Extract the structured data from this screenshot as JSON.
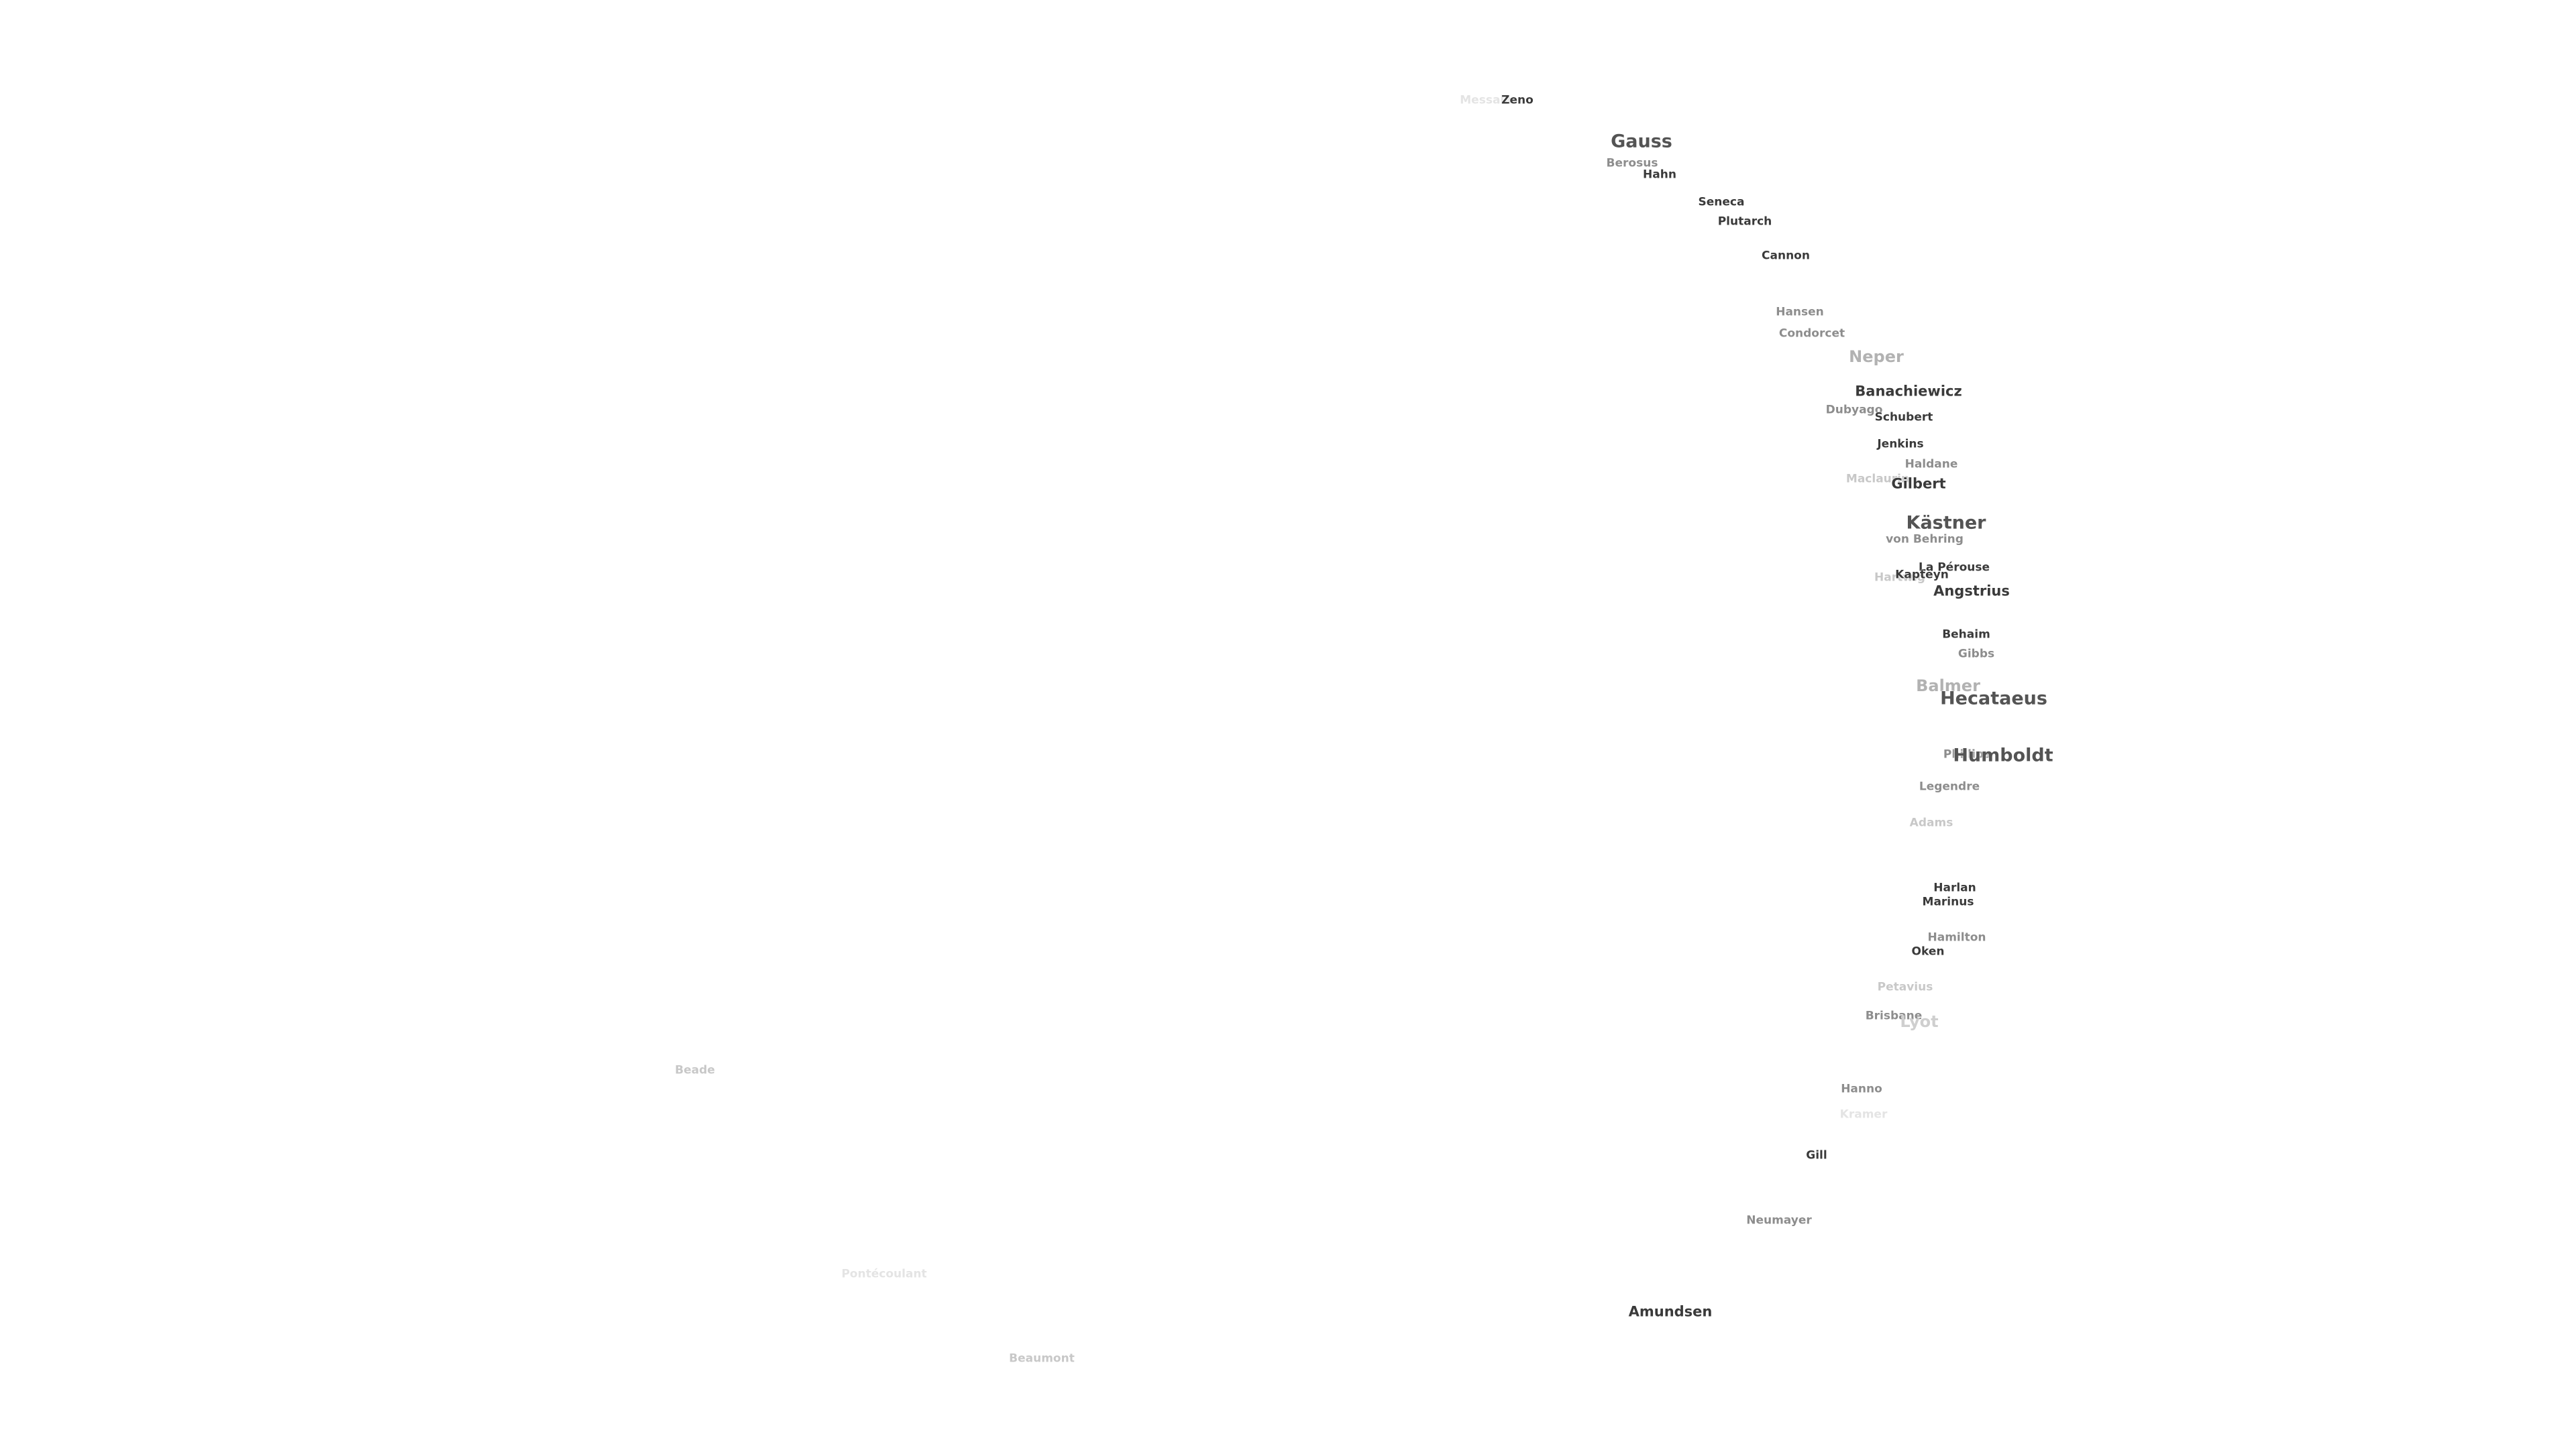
{
  "map": {
    "crater_labels": [
      {
        "name": "Gauss",
        "tone": "dark",
        "size": "large"
      },
      {
        "name": "Humboldt",
        "tone": "dark",
        "size": "large"
      },
      {
        "name": "Hecataeus",
        "tone": "dark",
        "size": "large"
      },
      {
        "name": "Kästner",
        "tone": "dark",
        "size": "large"
      },
      {
        "name": "Angstrius",
        "tone": "dark",
        "size": "medium"
      },
      {
        "name": "Neper",
        "tone": "faint",
        "size": "large"
      },
      {
        "name": "Balmer",
        "tone": "faint",
        "size": "large"
      },
      {
        "name": "Lyot",
        "tone": "faint",
        "size": "large"
      },
      {
        "name": "Amundsen",
        "tone": "dark",
        "size": "medium"
      },
      {
        "name": "Banachiewicz",
        "tone": "dark",
        "size": "medium"
      },
      {
        "name": "Gilbert",
        "tone": "dark",
        "size": "medium"
      },
      {
        "name": "Zeno",
        "tone": "dark",
        "size": "small"
      },
      {
        "name": "Hahn",
        "tone": "dark",
        "size": "small"
      },
      {
        "name": "Seneca",
        "tone": "dark",
        "size": "small"
      },
      {
        "name": "Plutarch",
        "tone": "dark",
        "size": "small"
      },
      {
        "name": "Cannon",
        "tone": "dark",
        "size": "small"
      },
      {
        "name": "Schubert",
        "tone": "dark",
        "size": "small"
      },
      {
        "name": "Jenkins",
        "tone": "dark",
        "size": "small"
      },
      {
        "name": "Behaim",
        "tone": "dark",
        "size": "small"
      },
      {
        "name": "Harlan",
        "tone": "dark",
        "size": "small"
      },
      {
        "name": "Marinus",
        "tone": "dark",
        "size": "small"
      },
      {
        "name": "Oken",
        "tone": "dark",
        "size": "small"
      },
      {
        "name": "Gill",
        "tone": "dark",
        "size": "small"
      },
      {
        "name": "La Pérouse",
        "tone": "dark",
        "size": "small"
      },
      {
        "name": "Kapteyn",
        "tone": "dark",
        "size": "small"
      },
      {
        "name": "von Behring",
        "tone": "grey",
        "size": "small"
      },
      {
        "name": "Berosus",
        "tone": "grey",
        "size": "small"
      },
      {
        "name": "Hansen",
        "tone": "grey",
        "size": "small"
      },
      {
        "name": "Condorcet",
        "tone": "grey",
        "size": "small"
      },
      {
        "name": "Dubyago",
        "tone": "grey",
        "size": "small"
      },
      {
        "name": "Haldane",
        "tone": "grey",
        "size": "small"
      },
      {
        "name": "Gibbs",
        "tone": "grey",
        "size": "small"
      },
      {
        "name": "Legendre",
        "tone": "grey",
        "size": "small"
      },
      {
        "name": "Hamilton",
        "tone": "grey",
        "size": "small"
      },
      {
        "name": "Hanno",
        "tone": "grey",
        "size": "small"
      },
      {
        "name": "Neumayer",
        "tone": "grey",
        "size": "small"
      },
      {
        "name": "Phillips",
        "tone": "grey",
        "size": "small"
      },
      {
        "name": "Maclaurin",
        "tone": "faint",
        "size": "small"
      },
      {
        "name": "Adams",
        "tone": "faint",
        "size": "small"
      },
      {
        "name": "Petavius",
        "tone": "faint",
        "size": "small"
      },
      {
        "name": "Brisbane",
        "tone": "faint",
        "size": "small"
      },
      {
        "name": "Beaumont",
        "tone": "faint",
        "size": "small"
      },
      {
        "name": "Hartwig",
        "tone": "faint",
        "size": "small"
      },
      {
        "name": "Beade",
        "tone": "faint",
        "size": "small"
      },
      {
        "name": "Pontécoulant",
        "tone": "faintest",
        "size": "small"
      },
      {
        "name": "Kramer",
        "tone": "faintest",
        "size": "small"
      },
      {
        "name": "Messala",
        "tone": "faintest",
        "size": "small"
      }
    ]
  }
}
